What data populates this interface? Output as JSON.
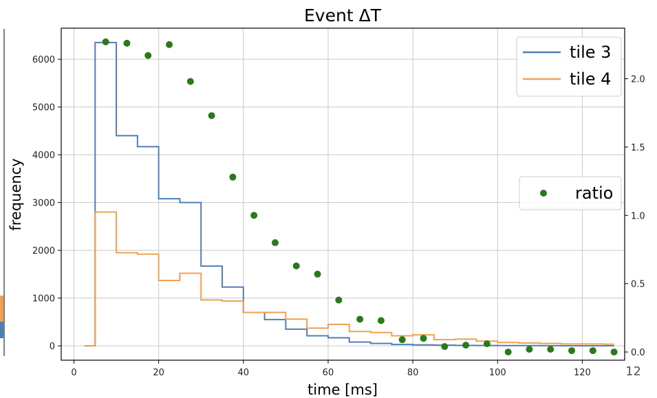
{
  "chart_data": {
    "type": "line",
    "title": "Event ΔT",
    "xlabel": "time [ms]",
    "ylabel": "frequency",
    "xlim": [
      -3,
      130
    ],
    "ylim": [
      -300,
      6650
    ],
    "y2lim": [
      -0.06,
      2.37
    ],
    "x_ticks": [
      0,
      20,
      40,
      60,
      80,
      100,
      120
    ],
    "y_ticks": [
      0,
      1000,
      2000,
      3000,
      4000,
      5000,
      6000
    ],
    "y2_ticks": [
      0.0,
      0.5,
      1.0,
      1.5,
      2.0
    ],
    "grid": true,
    "step_series": [
      {
        "name": "tile 3",
        "color": "#4c7fb8",
        "edges": [
          2.5,
          5,
          10,
          15,
          20,
          25,
          30,
          35,
          40,
          45,
          50,
          55,
          60,
          65,
          70,
          75,
          80,
          85,
          90,
          95,
          100,
          105,
          110,
          115,
          120,
          125,
          127.5
        ],
        "values": [
          0,
          6350,
          4400,
          4170,
          3080,
          3000,
          1670,
          1230,
          700,
          550,
          350,
          210,
          170,
          80,
          50,
          30,
          20,
          15,
          10,
          8,
          6,
          5,
          4,
          3,
          2,
          2
        ]
      },
      {
        "name": "tile 4",
        "color": "#f0a050",
        "edges": [
          2.5,
          5,
          10,
          15,
          20,
          25,
          30,
          35,
          40,
          45,
          50,
          55,
          60,
          65,
          70,
          75,
          80,
          85,
          90,
          95,
          100,
          105,
          110,
          115,
          120,
          125,
          127.5
        ],
        "values": [
          0,
          2800,
          1950,
          1920,
          1370,
          1520,
          960,
          940,
          700,
          700,
          560,
          370,
          450,
          300,
          280,
          210,
          230,
          130,
          140,
          100,
          70,
          60,
          50,
          40,
          40,
          35
        ]
      }
    ],
    "scatter_series": {
      "name": "ratio",
      "color": "#2a7a1a",
      "axis": "right",
      "x": [
        7.5,
        12.5,
        17.5,
        22.5,
        27.5,
        32.5,
        37.5,
        42.5,
        47.5,
        52.5,
        57.5,
        62.5,
        67.5,
        72.5,
        77.5,
        82.5,
        87.5,
        92.5,
        97.5,
        102.5,
        107.5,
        112.5,
        117.5,
        122.5,
        127.5
      ],
      "y": [
        2.27,
        2.26,
        2.17,
        2.25,
        1.98,
        1.73,
        1.28,
        1.0,
        0.8,
        0.63,
        0.57,
        0.38,
        0.24,
        0.23,
        0.09,
        0.1,
        0.04,
        0.05,
        0.06,
        0.0,
        0.02,
        0.02,
        0.01,
        0.01,
        0.0
      ]
    },
    "legend_upper": [
      "tile 3",
      "tile 4"
    ],
    "legend_right": [
      "ratio"
    ],
    "legend_placement": [
      "top-right",
      "center-right"
    ]
  },
  "page_number": "12"
}
